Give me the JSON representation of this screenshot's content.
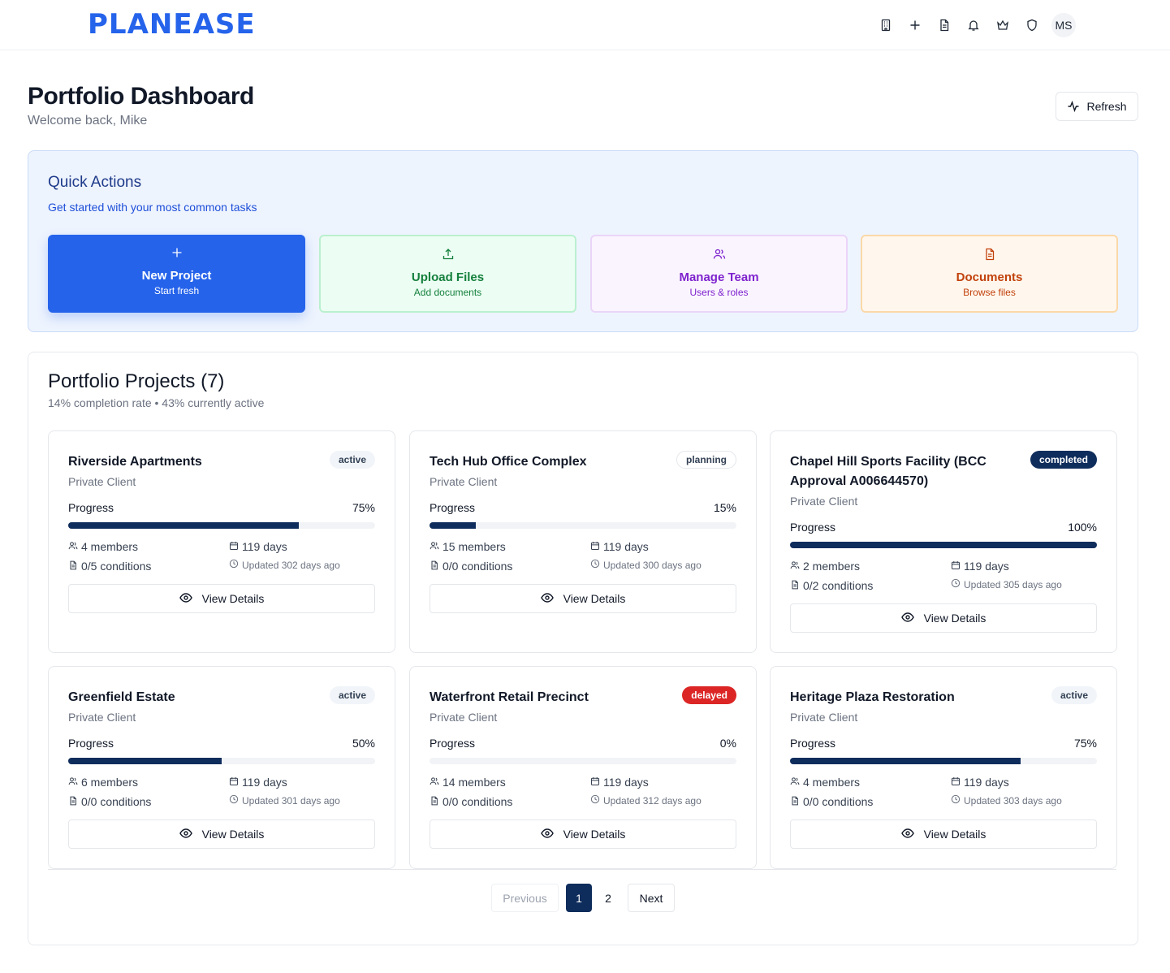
{
  "header": {
    "logo": "PLANEASE",
    "avatar_initials": "MS",
    "icons": [
      "building-icon",
      "plus-icon",
      "document-icon",
      "bell-icon",
      "crown-icon",
      "shield-icon"
    ]
  },
  "page": {
    "title": "Portfolio Dashboard",
    "subtitle": "Welcome back, Mike",
    "refresh_label": "Refresh"
  },
  "quick_actions": {
    "title": "Quick Actions",
    "subtitle": "Get started with your most common tasks",
    "items": [
      {
        "label": "New Project",
        "desc": "Start fresh",
        "icon": "plus-icon",
        "color": "#2563eb"
      },
      {
        "label": "Upload Files",
        "desc": "Add documents",
        "icon": "upload-icon",
        "color": "#15803d"
      },
      {
        "label": "Manage Team",
        "desc": "Users & roles",
        "icon": "users-icon",
        "color": "#7e22ce"
      },
      {
        "label": "Documents",
        "desc": "Browse files",
        "icon": "document-icon",
        "color": "#c2410c"
      }
    ]
  },
  "projects": {
    "title": "Portfolio Projects (7)",
    "subtitle": "14% completion rate • 43% currently active",
    "progress_label": "Progress",
    "view_label": "View Details",
    "items": [
      {
        "name": "Riverside Apartments",
        "status": "active",
        "client": "Private Client",
        "progress": 75,
        "progress_text": "75%",
        "members": "4 members",
        "days": "119 days",
        "conditions": "0/5 conditions",
        "updated": "Updated 302 days ago"
      },
      {
        "name": "Tech Hub Office Complex",
        "status": "planning",
        "client": "Private Client",
        "progress": 15,
        "progress_text": "15%",
        "members": "15 members",
        "days": "119 days",
        "conditions": "0/0 conditions",
        "updated": "Updated 300 days ago"
      },
      {
        "name": "Chapel Hill Sports Facility (BCC Approval A006644570)",
        "status": "completed",
        "client": "Private Client",
        "progress": 100,
        "progress_text": "100%",
        "members": "2 members",
        "days": "119 days",
        "conditions": "0/2 conditions",
        "updated": "Updated 305 days ago"
      },
      {
        "name": "Greenfield Estate",
        "status": "active",
        "client": "Private Client",
        "progress": 50,
        "progress_text": "50%",
        "members": "6 members",
        "days": "119 days",
        "conditions": "0/0 conditions",
        "updated": "Updated 301 days ago"
      },
      {
        "name": "Waterfront Retail Precinct",
        "status": "delayed",
        "client": "Private Client",
        "progress": 0,
        "progress_text": "0%",
        "members": "14 members",
        "days": "119 days",
        "conditions": "0/0 conditions",
        "updated": "Updated 312 days ago"
      },
      {
        "name": "Heritage Plaza Restoration",
        "status": "active",
        "client": "Private Client",
        "progress": 75,
        "progress_text": "75%",
        "members": "4 members",
        "days": "119 days",
        "conditions": "0/0 conditions",
        "updated": "Updated 303 days ago"
      }
    ]
  },
  "pagination": {
    "previous": "Previous",
    "pages": [
      "1",
      "2"
    ],
    "current": "1",
    "next": "Next"
  }
}
